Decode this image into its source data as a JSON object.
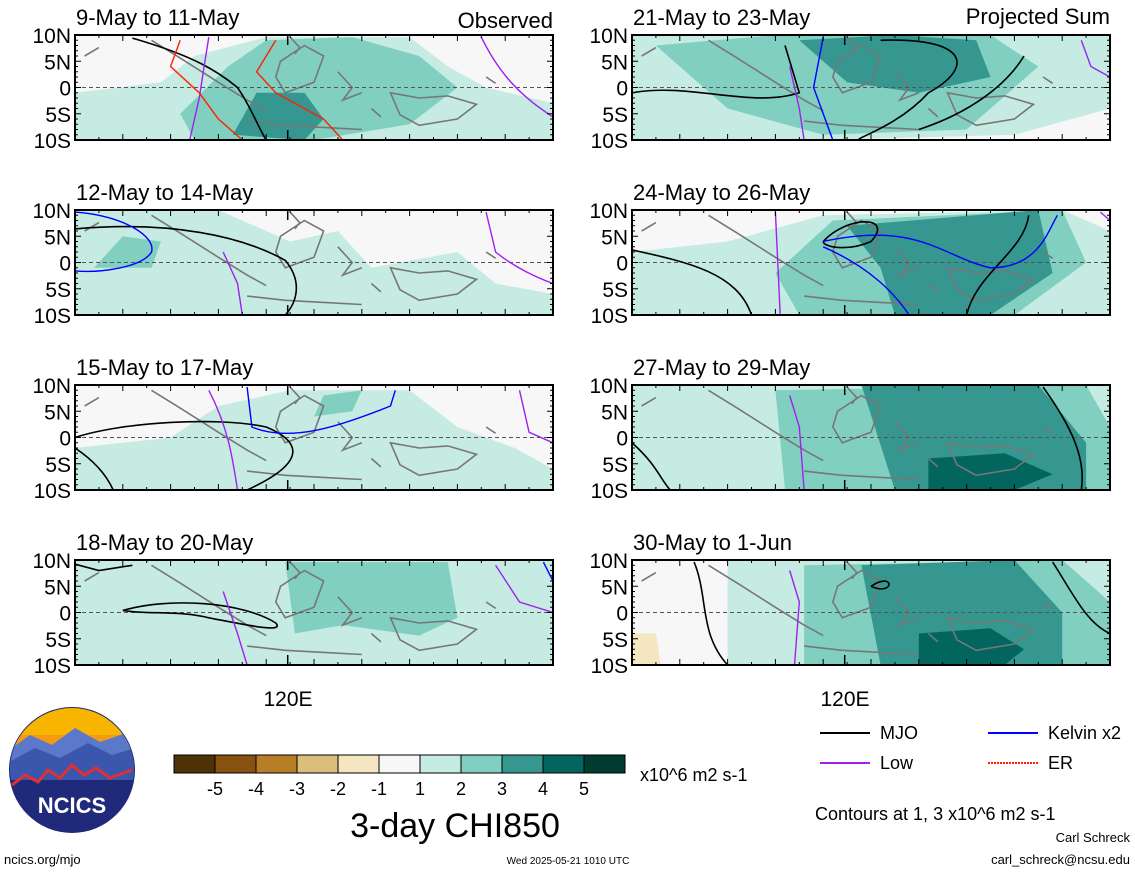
{
  "header": {
    "observed_label": "Observed",
    "projected_label": "Projected Sum"
  },
  "chart_data": {
    "type": "heatmap",
    "variable_title": "3-day CHI850",
    "units": "x10^6 m2 s-1",
    "y_tick_labels": [
      "10N",
      "5N",
      "0",
      "5S",
      "10S"
    ],
    "x_tick_label": "120E",
    "colorbar": {
      "tick_labels": [
        "-5",
        "-4",
        "-3",
        "-2",
        "-1",
        "1",
        "2",
        "3",
        "4",
        "5"
      ],
      "colors": [
        "#4d3208",
        "#87510f",
        "#b77e27",
        "#dbbe7a",
        "#f3e6c0",
        "#f7f7f7",
        "#c6ebe2",
        "#80cfc0",
        "#35978f",
        "#02665e",
        "#003c30"
      ]
    },
    "contour_note": "Contours at 1, 3 x10^6 m2 s-1",
    "legend": [
      {
        "name": "MJO",
        "color": "#000000"
      },
      {
        "name": "Kelvin x2",
        "color": "#0000ff"
      },
      {
        "name": "Low",
        "color": "#a020f0"
      },
      {
        "name": "ER",
        "color": "#ff2000"
      }
    ],
    "panels": [
      {
        "title": "9-May to 11-May",
        "group": "Observed"
      },
      {
        "title": "12-May to 14-May",
        "group": "Observed"
      },
      {
        "title": "15-May to 17-May",
        "group": "Observed"
      },
      {
        "title": "18-May to 20-May",
        "group": "Observed"
      },
      {
        "title": "21-May to 23-May",
        "group": "Projected Sum"
      },
      {
        "title": "24-May to 26-May",
        "group": "Projected Sum"
      },
      {
        "title": "27-May to 29-May",
        "group": "Projected Sum"
      },
      {
        "title": "30-May to 1-Jun",
        "group": "Projected Sum"
      }
    ]
  },
  "logo": {
    "text": "NCICS"
  },
  "footer": {
    "website": "ncics.org/mjo",
    "timestamp": "Wed 2025-05-21 1010 UTC",
    "author": "Carl Schreck",
    "email": "carl_schreck@ncsu.edu"
  }
}
